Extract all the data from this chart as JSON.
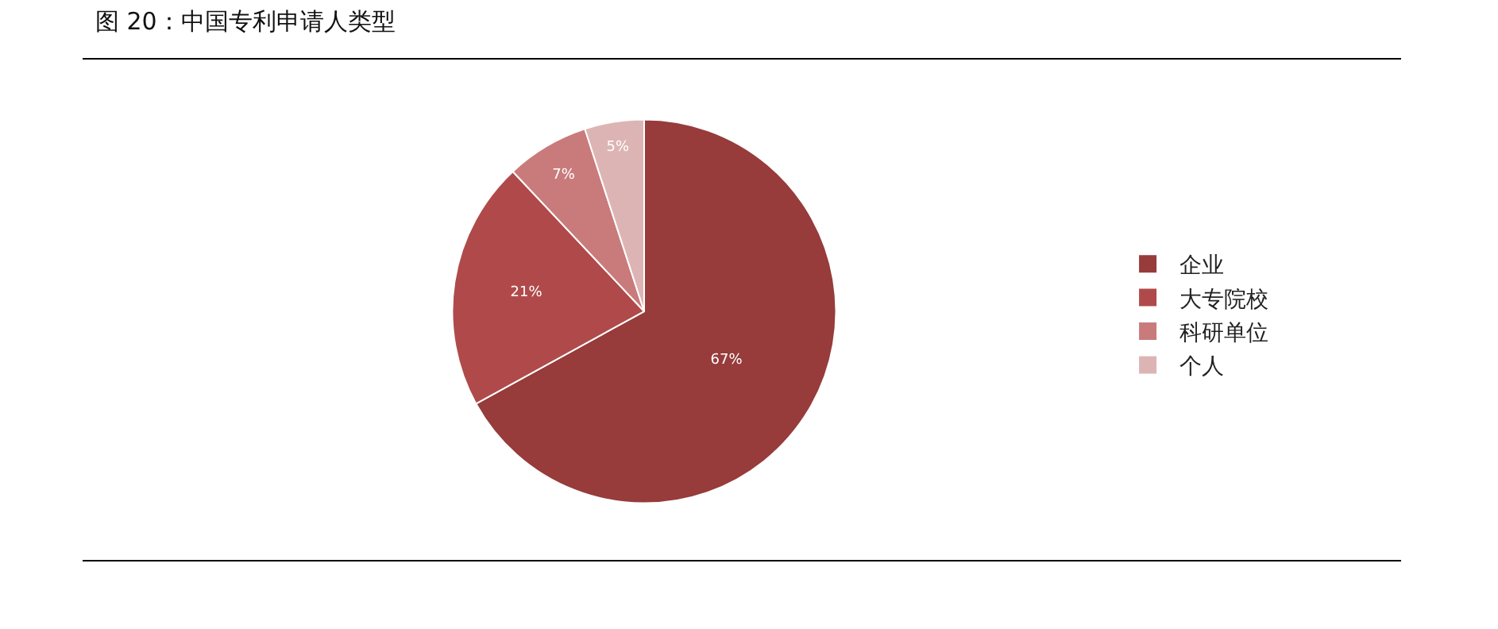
{
  "chart_data": {
    "type": "pie",
    "title": "图 20：中国专利申请人类型",
    "categories": [
      "企业",
      "大专院校",
      "科研单位",
      "个人"
    ],
    "values": [
      67,
      21,
      7,
      5
    ],
    "value_labels": [
      "67%",
      "21%",
      "7%",
      "5%"
    ],
    "colors": [
      "#973b3b",
      "#b04a4a",
      "#c97b7b",
      "#ddb4b4"
    ],
    "legend": "right"
  }
}
